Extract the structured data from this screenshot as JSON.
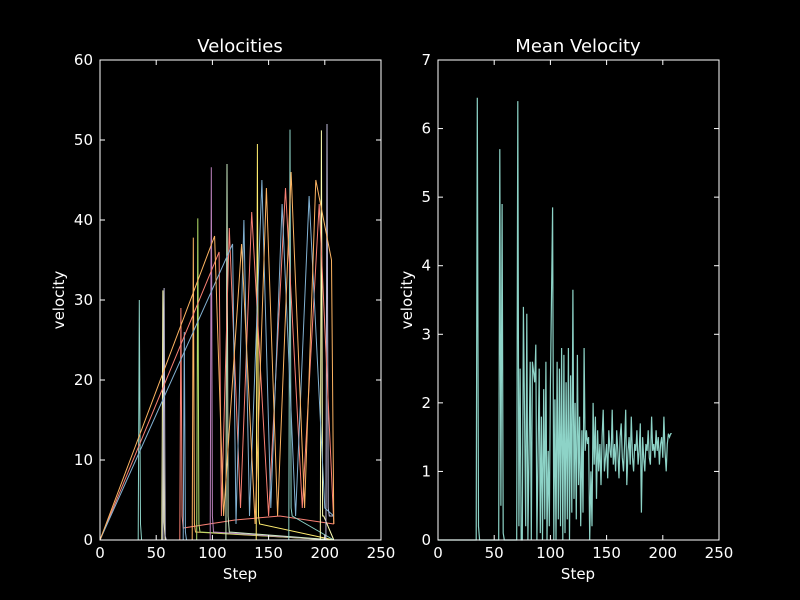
{
  "chart_data": [
    {
      "type": "line",
      "title": "Velocities",
      "xlabel": "Step",
      "ylabel": "velocity",
      "xlim": [
        0,
        250
      ],
      "ylim": [
        0,
        60
      ],
      "xticks": [
        "0",
        "50",
        "100",
        "150",
        "200",
        "250"
      ],
      "yticks": [
        "0",
        "10",
        "20",
        "30",
        "40",
        "50",
        "60"
      ],
      "grid": false,
      "series_count": "many",
      "palette": [
        "#8dd3c7",
        "#feffb3",
        "#bfbbd9",
        "#fa8174",
        "#81b1d2",
        "#fdb462",
        "#b3de69",
        "#bc82bd",
        "#ccebc4",
        "#ffed6f"
      ],
      "series": [
        {
          "x": [
            0,
            34,
            35,
            36,
            37,
            208
          ],
          "values": [
            0,
            0,
            30,
            2,
            0,
            0
          ]
        },
        {
          "x": [
            0,
            55,
            56,
            57,
            58,
            208
          ],
          "values": [
            0,
            0,
            31.2,
            2.2,
            0,
            0
          ]
        },
        {
          "x": [
            0,
            56,
            57,
            58,
            59,
            208
          ],
          "values": [
            0,
            0,
            31.5,
            0.5,
            0,
            0
          ]
        },
        {
          "x": [
            0,
            71,
            72,
            73,
            74,
            120,
            160,
            208
          ],
          "values": [
            0,
            0,
            29,
            3,
            1.5,
            2.5,
            3,
            2
          ]
        },
        {
          "x": [
            0,
            74,
            75,
            76,
            77,
            208
          ],
          "values": [
            0,
            0,
            26,
            1,
            0,
            0
          ]
        },
        {
          "x": [
            0,
            82,
            83,
            84,
            85,
            208
          ],
          "values": [
            0,
            0,
            37.8,
            2,
            1,
            0
          ]
        },
        {
          "x": [
            0,
            86,
            87,
            88,
            89,
            208
          ],
          "values": [
            0,
            0,
            40.2,
            2,
            1,
            0
          ]
        },
        {
          "x": [
            0,
            98,
            99,
            100,
            101,
            208
          ],
          "values": [
            0,
            0,
            46.6,
            3,
            1,
            0
          ]
        },
        {
          "x": [
            0,
            112,
            113,
            114,
            115,
            208
          ],
          "values": [
            0,
            0,
            47,
            3,
            1,
            0
          ]
        },
        {
          "x": [
            0,
            139,
            140,
            141,
            142,
            208
          ],
          "values": [
            0,
            0,
            49.5,
            3,
            2,
            0
          ]
        },
        {
          "x": [
            0,
            168,
            169,
            170,
            171,
            208
          ],
          "values": [
            0,
            0,
            51.3,
            4,
            3,
            0
          ]
        },
        {
          "x": [
            0,
            196,
            197,
            198,
            199,
            208
          ],
          "values": [
            0,
            0,
            51.2,
            3,
            3,
            0
          ]
        },
        {
          "x": [
            0,
            201,
            202,
            203,
            204,
            208
          ],
          "values": [
            0,
            0,
            52,
            4,
            3,
            3
          ]
        },
        {
          "x": [
            0,
            106,
            108,
            115,
            125,
            135,
            150,
            165,
            180,
            195,
            208
          ],
          "values": [
            0,
            36,
            3,
            39,
            4,
            41,
            3,
            44,
            4,
            42,
            2
          ]
        },
        {
          "x": [
            0,
            118,
            121,
            128,
            133,
            144,
            152,
            162,
            174,
            186,
            200,
            208
          ],
          "values": [
            0,
            37,
            2,
            40,
            3,
            45,
            4,
            42,
            3,
            43,
            4,
            3
          ]
        },
        {
          "x": [
            0,
            102,
            110,
            126,
            138,
            148,
            158,
            170,
            182,
            192,
            206,
            208
          ],
          "values": [
            0,
            38,
            3,
            37,
            2,
            44,
            3,
            46,
            4,
            45,
            35,
            2
          ]
        }
      ]
    },
    {
      "type": "line",
      "title": "Mean Velocity",
      "xlabel": "Step",
      "ylabel": "velocity",
      "xlim": [
        0,
        250
      ],
      "ylim": [
        0,
        7
      ],
      "xticks": [
        "0",
        "50",
        "100",
        "150",
        "200",
        "250"
      ],
      "yticks": [
        "0",
        "1",
        "2",
        "3",
        "4",
        "5",
        "6",
        "7"
      ],
      "grid": false,
      "color": "#8dd3c7",
      "x": [
        0,
        34,
        35,
        36,
        37,
        38,
        54,
        55,
        56,
        57,
        58,
        59,
        60,
        70,
        71,
        72,
        73,
        74,
        75,
        76,
        78,
        79,
        80,
        82,
        83,
        84,
        86,
        87,
        88,
        90,
        91,
        92,
        93,
        94,
        95,
        96,
        97,
        98,
        99,
        100,
        102,
        103,
        104,
        105,
        106,
        107,
        108,
        109,
        110,
        111,
        112,
        113,
        114,
        115,
        116,
        117,
        118,
        119,
        120,
        121,
        122,
        123,
        124,
        125,
        126,
        127,
        128,
        129,
        130,
        131,
        132,
        133,
        134,
        135,
        136,
        137,
        138,
        139,
        140,
        141,
        142,
        143,
        144,
        145,
        146,
        147,
        148,
        149,
        150,
        151,
        152,
        153,
        154,
        155,
        156,
        157,
        158,
        159,
        160,
        161,
        162,
        163,
        164,
        165,
        166,
        167,
        168,
        169,
        170,
        171,
        172,
        173,
        174,
        175,
        176,
        177,
        178,
        179,
        180,
        181,
        182,
        183,
        184,
        185,
        186,
        187,
        188,
        189,
        190,
        191,
        192,
        193,
        194,
        195,
        196,
        197,
        198,
        199,
        200,
        201,
        202,
        203,
        204,
        205,
        206,
        207,
        208
      ],
      "values": [
        0,
        0,
        6.45,
        0.2,
        0,
        0,
        0,
        5.7,
        0.5,
        4.9,
        0.1,
        0,
        0,
        0,
        6.4,
        0.2,
        2.5,
        0,
        0,
        3.4,
        0.2,
        3.3,
        0,
        2.6,
        0,
        2.6,
        2.3,
        2.85,
        0,
        2.5,
        0.1,
        1.8,
        0,
        2.2,
        0.3,
        2.6,
        0,
        1.3,
        0.2,
        2.25,
        4.85,
        0,
        2.05,
        0,
        2.6,
        0.3,
        2.5,
        0.2,
        2.8,
        0,
        2.7,
        0.1,
        2.3,
        0.3,
        2.8,
        0,
        2.4,
        0.4,
        3.65,
        0.6,
        2.0,
        0.3,
        2.7,
        0.8,
        1.8,
        0.2,
        1.6,
        0.4,
        2.8,
        1.3,
        1.6,
        1.4,
        1.5,
        0,
        1.0,
        0.2,
        2.0,
        1.1,
        1.8,
        0.6,
        1.6,
        1.0,
        1.4,
        0.8,
        1.5,
        1.9,
        1.0,
        1.2,
        1.4,
        0.9,
        1.6,
        1.3,
        1.2,
        1.9,
        1.1,
        1.4,
        1.0,
        1.6,
        1.3,
        0.9,
        1.5,
        1.7,
        1.2,
        1.0,
        1.4,
        1.9,
        0.8,
        1.3,
        1.5,
        1.1,
        1.8,
        1.2,
        1.0,
        1.4,
        1.3,
        1.6,
        1.1,
        1.3,
        1.7,
        0.4,
        1.5,
        1.2,
        1.0,
        1.4,
        1.3,
        1.6,
        1.2,
        1.1,
        1.8,
        1.3,
        1.4,
        1.2,
        1.6,
        1.3,
        1.5,
        1.1,
        1.4,
        1.5,
        1.2,
        1.8,
        1.3,
        1.0,
        1.4,
        1.55,
        1.5,
        1.55,
        1.55
      ]
    }
  ]
}
